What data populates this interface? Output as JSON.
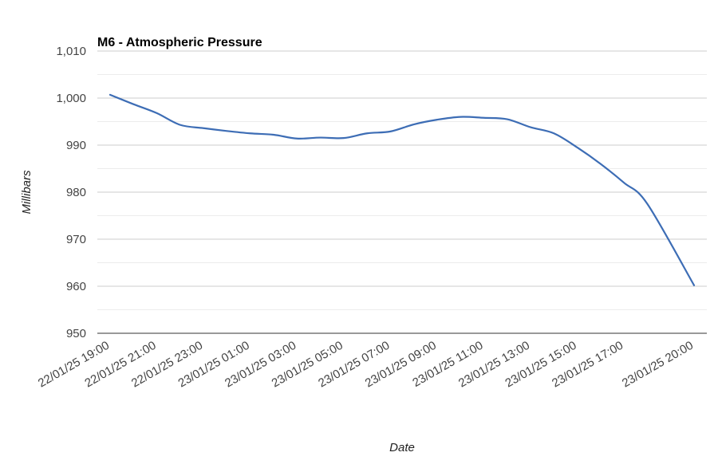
{
  "chart_data": {
    "type": "line",
    "title": "M6 - Atmospheric Pressure",
    "xlabel": "Date",
    "ylabel": "Millibars",
    "ylim": [
      950,
      1010
    ],
    "yticks": [
      950,
      960,
      970,
      980,
      990,
      1000,
      1010
    ],
    "ytick_labels": [
      "950",
      "960",
      "970",
      "980",
      "990",
      "1,000",
      "1,010"
    ],
    "minor_gridlines": true,
    "legend": "none",
    "line_color": "#3d6db5",
    "xtick_labels": [
      "22/01/25 19:00",
      "22/01/25 21:00",
      "22/01/25 23:00",
      "23/01/25 01:00",
      "23/01/25 03:00",
      "23/01/25 05:00",
      "23/01/25 07:00",
      "23/01/25 09:00",
      "23/01/25 11:00",
      "23/01/25 13:00",
      "23/01/25 15:00",
      "23/01/25 17:00",
      "23/01/25 20:00"
    ],
    "series": [
      {
        "x": [
          "22/01/25 19:00",
          "22/01/25 20:00",
          "22/01/25 21:00",
          "22/01/25 22:00",
          "22/01/25 23:00",
          "23/01/25 00:00",
          "23/01/25 01:00",
          "23/01/25 02:00",
          "23/01/25 03:00",
          "23/01/25 04:00",
          "23/01/25 05:00",
          "23/01/25 06:00",
          "23/01/25 07:00",
          "23/01/25 08:00",
          "23/01/25 09:00",
          "23/01/25 10:00",
          "23/01/25 11:00",
          "23/01/25 12:00",
          "23/01/25 13:00",
          "23/01/25 14:00",
          "23/01/25 15:00",
          "23/01/25 16:00",
          "23/01/25 17:00",
          "23/01/25 18:00",
          "23/01/25 20:00"
        ],
        "values": [
          1000.7,
          998.7,
          996.8,
          994.3,
          993.6,
          993.0,
          992.5,
          992.2,
          991.4,
          991.6,
          991.5,
          992.5,
          992.9,
          994.4,
          995.4,
          996.0,
          995.8,
          995.5,
          993.8,
          992.5,
          989.5,
          986.0,
          982.0,
          977.5,
          960.2
        ]
      }
    ]
  }
}
